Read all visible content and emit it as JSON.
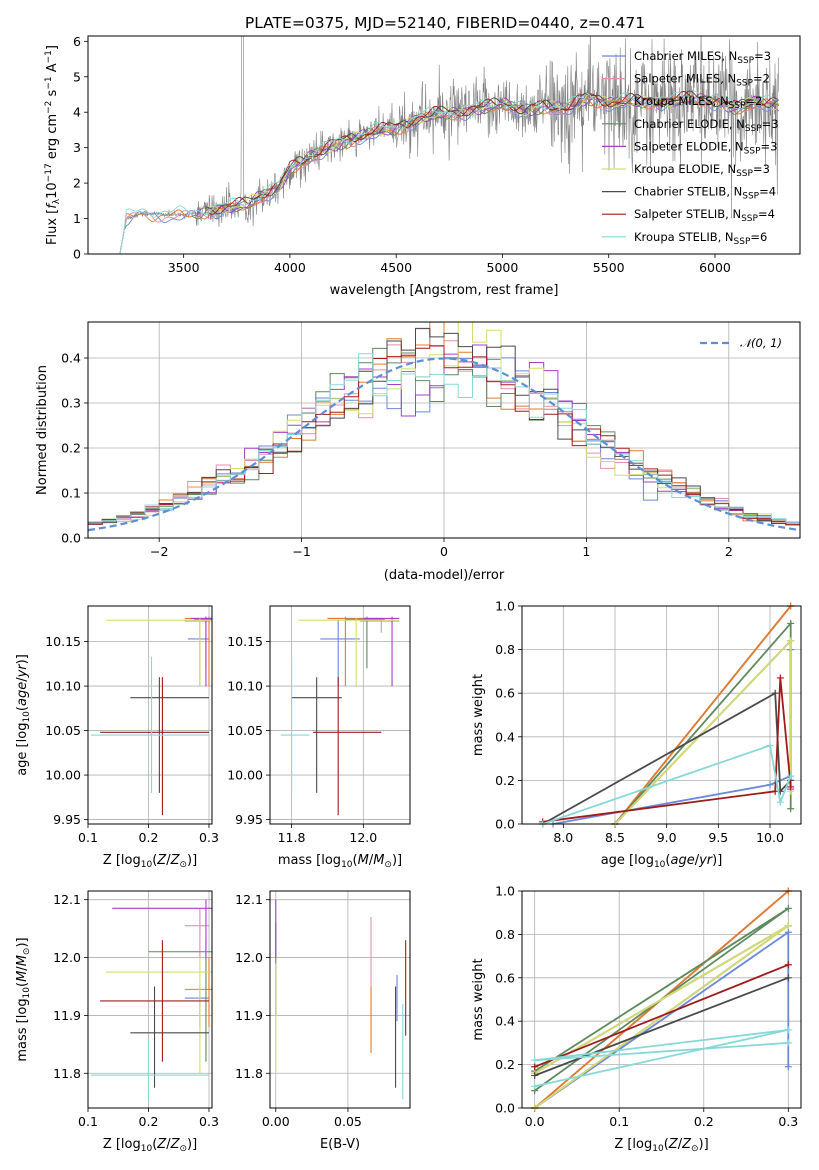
{
  "figure": {
    "title": "PLATE=0375, MJD=52140, FIBERID=0440, z=0.471"
  },
  "colors": {
    "Chabrier MILES": "#6a89d8",
    "Salpeter MILES": "#e38eb0",
    "Kroupa MILES": "#e07b2e",
    "Chabrier ELODIE": "#5e8a5e",
    "Salpeter ELODIE": "#a63ec9",
    "Kroupa ELODIE": "#cfe06a",
    "Chabrier STELIB": "#4a4a4a",
    "Salpeter STELIB": "#a01c1c",
    "Kroupa STELIB": "#88d8d8",
    "data": "#808080",
    "normal": "#5b8fd6"
  },
  "chart_data": [
    {
      "id": "spectrum",
      "type": "line",
      "title": "PLATE=0375, MJD=52140, FIBERID=0440, z=0.471",
      "xlabel": "wavelength [Angstrom, rest frame]",
      "ylabel": "Flux [f_λ 10^-17 erg cm^-2 s^-1 A^-1]",
      "xlim": [
        3050,
        6400
      ],
      "ylim": [
        0,
        6.15
      ],
      "xticks": [
        "3500",
        "4000",
        "4500",
        "5000",
        "5500",
        "6000"
      ],
      "yticks": [
        "0",
        "1",
        "2",
        "3",
        "4",
        "5",
        "6"
      ],
      "grid": false,
      "legend_position": "right",
      "legend": [
        "Chabrier MILES, N_SSP=3",
        "Salpeter MILES, N_SSP=2",
        "Kroupa MILES, N_SSP=2",
        "Chabrier ELODIE, N_SSP=3",
        "Salpeter ELODIE, N_SSP=3",
        "Kroupa ELODIE, N_SSP=3",
        "Chabrier STELIB, N_SSP=4",
        "Salpeter STELIB, N_SSP=4",
        "Kroupa STELIB, N_SSP=6"
      ],
      "continuum_anchors": {
        "x": [
          3200,
          3230,
          3300,
          3500,
          3700,
          3800,
          3850,
          3950,
          4000,
          4100,
          4200,
          4300,
          4400,
          4500,
          4600,
          4700,
          4800,
          4900,
          5000,
          5100,
          5200,
          5300,
          5400,
          5500,
          5600,
          5700,
          5800,
          5900,
          6000,
          6100,
          6200,
          6300
        ],
        "y": [
          0.0,
          1.0,
          1.15,
          1.1,
          1.3,
          1.4,
          1.6,
          1.9,
          2.4,
          2.75,
          3.05,
          3.25,
          3.45,
          3.55,
          3.8,
          3.95,
          4.0,
          4.1,
          4.25,
          4.05,
          4.15,
          4.1,
          4.4,
          4.25,
          4.3,
          4.3,
          4.3,
          4.4,
          4.3,
          4.1,
          4.3,
          4.2
        ]
      }
    },
    {
      "id": "residuals",
      "type": "line",
      "xlabel": "(data-model)/error",
      "ylabel": "Normed distribution",
      "xlim": [
        -2.5,
        2.5
      ],
      "ylim": [
        0,
        0.48
      ],
      "xticks": [
        "-2",
        "-1",
        "0",
        "1",
        "2"
      ],
      "yticks": [
        "0.0",
        "0.1",
        "0.2",
        "0.3",
        "0.4"
      ],
      "grid": true,
      "legend_position": "top-right",
      "legend": [
        "𝒩(0, 1)"
      ],
      "normal_curve": {
        "mu": 0,
        "sigma": 1
      },
      "histogram": {
        "bin_width": 0.1,
        "range": [
          -2.5,
          2.5
        ]
      }
    },
    {
      "id": "age_vs_Z",
      "type": "scatter",
      "xlabel": "Z [log10(Z/Z⊙)]",
      "ylabel": "age [log10(age/yr)]",
      "xlim": [
        0.1,
        0.305
      ],
      "ylim": [
        9.945,
        10.19
      ],
      "xticks": [
        "0.1",
        "0.2",
        "0.3"
      ],
      "yticks": [
        "9.95",
        "10.00",
        "10.05",
        "10.10",
        "10.15"
      ],
      "grid": true,
      "points": [
        {
          "series": "Chabrier MILES",
          "x": 0.285,
          "y": 10.153,
          "xerr": [
            0.265,
            0.3
          ],
          "yerr": [
            10.1,
            10.175
          ]
        },
        {
          "series": "Salpeter MILES",
          "x": 0.285,
          "y": 10.173,
          "xerr": [
            0.26,
            0.302
          ],
          "yerr": [
            10.16,
            10.176
          ]
        },
        {
          "series": "Kroupa MILES",
          "x": 0.3,
          "y": 10.176,
          "xerr": [
            0.26,
            0.305
          ],
          "yerr": [
            10.1,
            10.178
          ]
        },
        {
          "series": "Chabrier ELODIE",
          "x": 0.295,
          "y": 10.175,
          "xerr": [
            0.275,
            0.305
          ],
          "yerr": [
            10.12,
            10.178
          ]
        },
        {
          "series": "Salpeter ELODIE",
          "x": 0.295,
          "y": 10.176,
          "xerr": [
            0.27,
            0.305
          ],
          "yerr": [
            10.1,
            10.178
          ]
        },
        {
          "series": "Kroupa ELODIE",
          "x": 0.285,
          "y": 10.174,
          "xerr": [
            0.13,
            0.305
          ],
          "yerr": [
            10.1,
            10.176
          ]
        },
        {
          "series": "Chabrier STELIB",
          "x": 0.218,
          "y": 10.087,
          "xerr": [
            0.17,
            0.3
          ],
          "yerr": [
            9.98,
            10.11
          ]
        },
        {
          "series": "Salpeter STELIB",
          "x": 0.223,
          "y": 10.048,
          "xerr": [
            0.12,
            0.3
          ],
          "yerr": [
            9.955,
            10.11
          ]
        },
        {
          "series": "Kroupa STELIB",
          "x": 0.205,
          "y": 10.045,
          "xerr": [
            0.105,
            0.3
          ],
          "yerr": [
            9.98,
            10.133
          ]
        }
      ]
    },
    {
      "id": "age_vs_mass",
      "type": "scatter",
      "xlabel": "mass [log10(M/M⊙)]",
      "ylabel": "",
      "xlim": [
        11.74,
        12.13
      ],
      "ylim": [
        9.945,
        10.19
      ],
      "xticks": [
        "11.8",
        "12.0"
      ],
      "yticks": [
        "9.95",
        "10.00",
        "10.05",
        "10.10",
        "10.15"
      ],
      "grid": true,
      "points": [
        {
          "series": "Chabrier MILES",
          "x": 11.93,
          "y": 10.153,
          "xerr": [
            11.88,
            11.99
          ],
          "yerr": [
            10.1,
            10.175
          ]
        },
        {
          "series": "Salpeter MILES",
          "x": 12.05,
          "y": 10.173,
          "xerr": [
            11.99,
            12.1
          ],
          "yerr": [
            10.16,
            10.176
          ]
        },
        {
          "series": "Kroupa MILES",
          "x": 11.95,
          "y": 10.176,
          "xerr": [
            11.9,
            12.05
          ],
          "yerr": [
            10.1,
            10.178
          ]
        },
        {
          "series": "Chabrier ELODIE",
          "x": 12.01,
          "y": 10.175,
          "xerr": [
            11.95,
            12.06
          ],
          "yerr": [
            10.12,
            10.178
          ]
        },
        {
          "series": "Salpeter ELODIE",
          "x": 12.08,
          "y": 10.176,
          "xerr": [
            12.0,
            12.1
          ],
          "yerr": [
            10.1,
            10.178
          ]
        },
        {
          "series": "Kroupa ELODIE",
          "x": 11.98,
          "y": 10.174,
          "xerr": [
            11.82,
            12.1
          ],
          "yerr": [
            10.1,
            10.176
          ]
        },
        {
          "series": "Chabrier STELIB",
          "x": 11.87,
          "y": 10.087,
          "xerr": [
            11.8,
            11.94
          ],
          "yerr": [
            9.98,
            10.11
          ]
        },
        {
          "series": "Salpeter STELIB",
          "x": 11.93,
          "y": 10.048,
          "xerr": [
            11.86,
            12.05
          ],
          "yerr": [
            9.955,
            10.11
          ]
        },
        {
          "series": "Kroupa STELIB",
          "x": 11.8,
          "y": 10.045,
          "xerr": [
            11.77,
            11.85
          ],
          "yerr": [
            9.98,
            10.133
          ]
        }
      ]
    },
    {
      "id": "weight_vs_age",
      "type": "line",
      "xlabel": "age [log10(age/yr)]",
      "ylabel": "mass weight",
      "xlim": [
        7.6,
        10.3
      ],
      "ylim": [
        0,
        1
      ],
      "xticks": [
        "8.0",
        "8.5",
        "9.0",
        "9.5",
        "10.0"
      ],
      "yticks": [
        "0.0",
        "0.2",
        "0.4",
        "0.6",
        "0.8",
        "1.0"
      ],
      "grid": true,
      "series": [
        {
          "name": "Chabrier MILES",
          "x": [
            7.9,
            10.0,
            10.2,
            10.2
          ],
          "y": [
            0.0,
            0.18,
            0.22,
            0.8
          ]
        },
        {
          "name": "Salpeter MILES",
          "x": [
            8.5,
            10.2
          ],
          "y": [
            0.0,
            1.0
          ]
        },
        {
          "name": "Kroupa MILES",
          "x": [
            8.5,
            10.2
          ],
          "y": [
            0.0,
            1.0
          ]
        },
        {
          "name": "Chabrier ELODIE",
          "x": [
            8.5,
            10.2,
            10.2
          ],
          "y": [
            0.0,
            0.92,
            0.07
          ]
        },
        {
          "name": "Salpeter ELODIE",
          "x": [
            8.5,
            10.2,
            10.2
          ],
          "y": [
            0.0,
            0.84,
            0.16
          ]
        },
        {
          "name": "Kroupa ELODIE",
          "x": [
            8.5,
            10.2,
            10.2
          ],
          "y": [
            0.0,
            0.84,
            0.15
          ]
        },
        {
          "name": "Chabrier STELIB",
          "x": [
            7.8,
            10.05,
            10.1,
            10.2
          ],
          "y": [
            0.0,
            0.6,
            0.15,
            0.2
          ]
        },
        {
          "name": "Salpeter STELIB",
          "x": [
            7.8,
            10.05,
            10.1,
            10.2
          ],
          "y": [
            0.01,
            0.15,
            0.67,
            0.17
          ]
        },
        {
          "name": "Kroupa STELIB",
          "x": [
            7.8,
            10.0,
            10.1,
            10.2
          ],
          "y": [
            0.0,
            0.36,
            0.1,
            0.22
          ]
        }
      ]
    },
    {
      "id": "mass_vs_Z",
      "type": "scatter",
      "xlabel": "Z [log10(Z/Z⊙)]",
      "ylabel": "mass [log10(M/M⊙)]",
      "xlim": [
        0.1,
        0.305
      ],
      "ylim": [
        11.74,
        12.115
      ],
      "xticks": [
        "0.1",
        "0.2",
        "0.3"
      ],
      "yticks": [
        "11.8",
        "11.9",
        "12.0",
        "12.1"
      ],
      "grid": true,
      "points": [
        {
          "series": "Chabrier MILES",
          "x": 0.285,
          "y": 11.93,
          "xerr": [
            0.26,
            0.3
          ],
          "yerr": [
            11.88,
            11.95
          ]
        },
        {
          "series": "Salpeter MILES",
          "x": 0.285,
          "y": 12.055,
          "xerr": [
            0.26,
            0.3
          ],
          "yerr": [
            12.0,
            12.085
          ]
        },
        {
          "series": "Kroupa MILES",
          "x": 0.3,
          "y": 11.945,
          "xerr": [
            0.26,
            0.305
          ],
          "yerr": [
            11.88,
            12.0
          ]
        },
        {
          "series": "Chabrier ELODIE",
          "x": 0.295,
          "y": 12.01,
          "xerr": [
            0.2,
            0.305
          ],
          "yerr": [
            11.82,
            12.03
          ]
        },
        {
          "series": "Salpeter ELODIE",
          "x": 0.295,
          "y": 12.085,
          "xerr": [
            0.14,
            0.305
          ],
          "yerr": [
            12.0,
            12.1
          ]
        },
        {
          "series": "Kroupa ELODIE",
          "x": 0.285,
          "y": 11.975,
          "xerr": [
            0.13,
            0.305
          ],
          "yerr": [
            11.8,
            12.0
          ]
        },
        {
          "series": "Chabrier STELIB",
          "x": 0.21,
          "y": 11.87,
          "xerr": [
            0.17,
            0.3
          ],
          "yerr": [
            11.775,
            11.95
          ]
        },
        {
          "series": "Salpeter STELIB",
          "x": 0.223,
          "y": 11.925,
          "xerr": [
            0.12,
            0.3
          ],
          "yerr": [
            11.82,
            12.03
          ]
        },
        {
          "series": "Kroupa STELIB",
          "x": 0.2,
          "y": 11.797,
          "xerr": [
            0.105,
            0.3
          ],
          "yerr": [
            11.755,
            11.86
          ]
        }
      ]
    },
    {
      "id": "mass_vs_EBV",
      "type": "scatter",
      "xlabel": "E(B-V)",
      "ylabel": "",
      "xlim": [
        -0.004,
        0.093
      ],
      "ylim": [
        11.74,
        12.115
      ],
      "xticks": [
        "0.00",
        "0.05"
      ],
      "yticks": [
        "11.8",
        "11.9",
        "12.0",
        "12.1"
      ],
      "grid": true,
      "points": [
        {
          "series": "Chabrier MILES",
          "x": 0.084,
          "y": 11.93,
          "yerr": [
            11.89,
            11.97
          ]
        },
        {
          "series": "Salpeter MILES",
          "x": 0.066,
          "y": 12.01,
          "yerr": [
            11.95,
            12.07
          ]
        },
        {
          "series": "Kroupa MILES",
          "x": 0.066,
          "y": 11.89,
          "yerr": [
            11.835,
            11.95
          ]
        },
        {
          "series": "Chabrier ELODIE",
          "x": 0.0,
          "y": 11.99,
          "yerr": [
            11.9,
            12.06
          ]
        },
        {
          "series": "Salpeter ELODIE",
          "x": 0.0,
          "y": 12.05,
          "yerr": [
            12.0,
            12.1
          ]
        },
        {
          "series": "Kroupa ELODIE",
          "x": 0.0,
          "y": 11.9,
          "yerr": [
            11.8,
            11.99
          ]
        },
        {
          "series": "Chabrier STELIB",
          "x": 0.083,
          "y": 11.85,
          "yerr": [
            11.775,
            11.95
          ]
        },
        {
          "series": "Salpeter STELIB",
          "x": 0.09,
          "y": 11.95,
          "yerr": [
            11.865,
            12.03
          ]
        },
        {
          "series": "Kroupa STELIB",
          "x": 0.088,
          "y": 11.84,
          "yerr": [
            11.755,
            11.92
          ]
        }
      ]
    },
    {
      "id": "weight_vs_Z",
      "type": "line",
      "xlabel": "Z [log10(Z/Z⊙)]",
      "ylabel": "mass weight",
      "xlim": [
        -0.015,
        0.315
      ],
      "ylim": [
        0,
        1
      ],
      "xticks": [
        "0.0",
        "0.1",
        "0.2",
        "0.3"
      ],
      "yticks": [
        "0.0",
        "0.2",
        "0.4",
        "0.6",
        "0.8",
        "1.0"
      ],
      "grid": true,
      "series": [
        {
          "name": "Chabrier MILES",
          "x": [
            0.0,
            0.3,
            0.3
          ],
          "y": [
            0.0,
            0.81,
            0.19
          ]
        },
        {
          "name": "Salpeter MILES",
          "x": [
            0.0,
            0.3
          ],
          "y": [
            0.0,
            1.0
          ]
        },
        {
          "name": "Kroupa MILES",
          "x": [
            0.0,
            0.3
          ],
          "y": [
            0.0,
            1.0
          ]
        },
        {
          "name": "Chabrier ELODIE",
          "x": [
            0.0,
            0.3,
            0.0
          ],
          "y": [
            0.08,
            0.92,
            0.17
          ]
        },
        {
          "name": "Salpeter ELODIE",
          "x": [
            0.0,
            0.3,
            0.0
          ],
          "y": [
            0.16,
            0.84,
            0.0
          ]
        },
        {
          "name": "Kroupa ELODIE",
          "x": [
            0.0,
            0.3,
            0.0
          ],
          "y": [
            0.16,
            0.84,
            0.0
          ]
        },
        {
          "name": "Chabrier STELIB",
          "x": [
            0.0,
            0.3
          ],
          "y": [
            0.15,
            0.6
          ]
        },
        {
          "name": "Salpeter STELIB",
          "x": [
            0.0,
            0.3
          ],
          "y": [
            0.19,
            0.66
          ]
        },
        {
          "name": "Kroupa STELIB",
          "x": [
            0.0,
            0.3,
            0.0,
            0.3
          ],
          "y": [
            0.1,
            0.36,
            0.22,
            0.3
          ]
        }
      ]
    }
  ]
}
